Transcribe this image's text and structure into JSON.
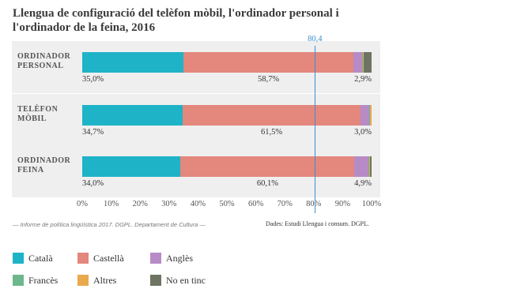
{
  "chart_data": {
    "type": "stacked-bar-horizontal",
    "title": "Llengua de configuració del telèfon mòbil, l'ordinador personal i l'ordinador de la feina, 2016",
    "categories": [
      "ORDINADOR PERSONAL",
      "TELÈFON MÒBIL",
      "ORDINADOR FEINA"
    ],
    "series": [
      {
        "name": "Català",
        "color": "#1fb3c8",
        "values": [
          35.0,
          34.7,
          34.0
        ],
        "value_labels": [
          "35,0%",
          "34,7%",
          "34,0%"
        ]
      },
      {
        "name": "Castellà",
        "color": "#e4877d",
        "values": [
          58.7,
          61.5,
          60.1
        ],
        "value_labels": [
          "58,7%",
          "61,5%",
          "60,1%"
        ]
      },
      {
        "name": "Anglès",
        "color": "#b68bc6",
        "values": [
          2.9,
          3.0,
          4.9
        ],
        "value_labels": [
          "2,9%",
          "3,0%",
          "4,9%"
        ]
      },
      {
        "name": "Francès",
        "color": "#6db78d",
        "values": [
          0.4,
          0.2,
          0.3
        ]
      },
      {
        "name": "Altres",
        "color": "#e9a94d",
        "values": [
          0.3,
          0.6,
          0.2
        ]
      },
      {
        "name": "No en tinc",
        "color": "#6e7462",
        "values": [
          2.7,
          0,
          0.5
        ]
      }
    ],
    "xlim": [
      0,
      100
    ],
    "xticks": [
      {
        "value": 0,
        "label": "0%"
      },
      {
        "value": 10,
        "label": "10%"
      },
      {
        "value": 20,
        "label": "20%"
      },
      {
        "value": 30,
        "label": "30%"
      },
      {
        "value": 40,
        "label": "40%"
      },
      {
        "value": 50,
        "label": "50%"
      },
      {
        "value": 60,
        "label": "60%"
      },
      {
        "value": 70,
        "label": "70%"
      },
      {
        "value": 80,
        "label": "80%"
      },
      {
        "value": 90,
        "label": "90%"
      },
      {
        "value": 100,
        "label": "100%"
      }
    ],
    "reference_line": {
      "value": 80.4,
      "label": "80,4",
      "color": "#3a8fd0"
    },
    "grid": false,
    "legend": "bottom",
    "footnote": "— Informe de política lingüística 2017. DGPL. Departament de Cultura —",
    "source": "Dades: Estudi Llengua i consum. DGPL."
  }
}
